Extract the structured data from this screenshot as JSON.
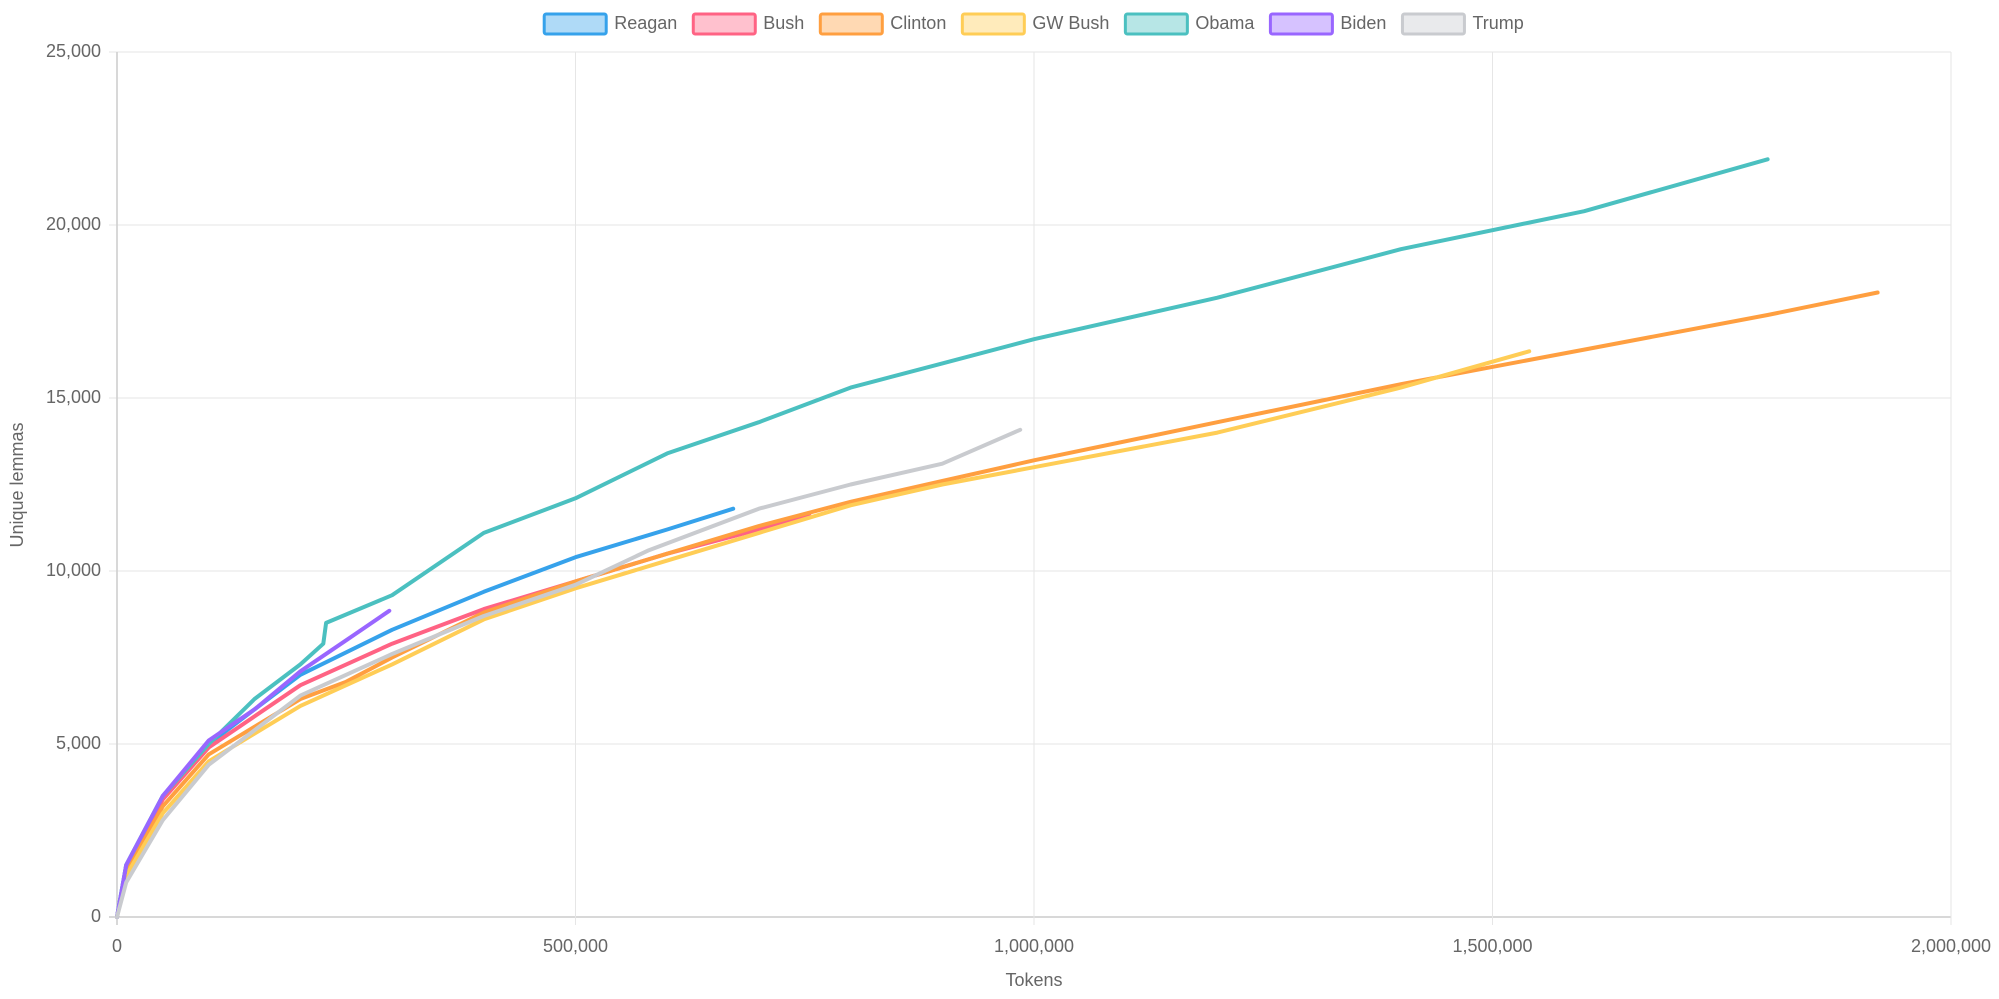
{
  "chart_data": {
    "type": "line",
    "x_label": "Tokens",
    "y_label": "Unique lemmas",
    "xlim": [
      0,
      2000000
    ],
    "xticks": [
      0,
      {
        "value": 500000,
        "label": "500,000"
      },
      {
        "value": 1000000,
        "label": "1,000,000"
      },
      {
        "value": 1500000,
        "label": "1,500,000"
      },
      {
        "value": 2000000,
        "label": "2,000,000"
      }
    ],
    "ylim": [
      0,
      25000
    ],
    "yticks": [
      0,
      {
        "value": 5000,
        "label": "5,000"
      },
      {
        "value": 10000,
        "label": "10,000"
      },
      {
        "value": 15000,
        "label": "15,000"
      },
      {
        "value": 20000,
        "label": "20,000"
      },
      {
        "value": 25000,
        "label": "25,000"
      }
    ],
    "grid": true,
    "legend": "top",
    "series": [
      {
        "name": "Reagan",
        "color": "#36a2eb",
        "x": [
          0,
          10000,
          50000,
          100000,
          150000,
          200000,
          300000,
          400000,
          500000,
          600000,
          672000
        ],
        "values": [
          0,
          1500,
          3500,
          5000,
          6000,
          7000,
          8300,
          9400,
          10400,
          11200,
          11800
        ]
      },
      {
        "name": "Bush",
        "color": "#ff6384",
        "x": [
          0,
          10000,
          50000,
          100000,
          200000,
          300000,
          400000,
          500000,
          600000,
          700000,
          755000
        ],
        "values": [
          0,
          1400,
          3400,
          4900,
          6700,
          7900,
          8900,
          9700,
          10500,
          11200,
          11650
        ]
      },
      {
        "name": "Clinton",
        "color": "#ff9f40",
        "x": [
          0,
          10000,
          50000,
          100000,
          200000,
          250000,
          300000,
          400000,
          500000,
          600000,
          700000,
          800000,
          900000,
          1000000,
          1200000,
          1400000,
          1600000,
          1800000,
          1920000
        ],
        "values": [
          0,
          1300,
          3200,
          4700,
          6300,
          6800,
          7500,
          8800,
          9700,
          10500,
          11300,
          12000,
          12600,
          13200,
          14300,
          15400,
          16400,
          17400,
          18050
        ]
      },
      {
        "name": "GW Bush",
        "color": "#ffcd56",
        "x": [
          0,
          10000,
          50000,
          100000,
          200000,
          300000,
          400000,
          500000,
          600000,
          700000,
          800000,
          900000,
          1000000,
          1200000,
          1400000,
          1540000
        ],
        "values": [
          0,
          1200,
          3000,
          4500,
          6100,
          7300,
          8600,
          9500,
          10300,
          11100,
          11900,
          12500,
          13000,
          14000,
          15300,
          16350
        ]
      },
      {
        "name": "Obama",
        "color": "#4bc0c0",
        "x": [
          0,
          10000,
          50000,
          100000,
          150000,
          200000,
          225000,
          228000,
          300000,
          400000,
          500000,
          600000,
          700000,
          800000,
          900000,
          1000000,
          1200000,
          1400000,
          1600000,
          1800000
        ],
        "values": [
          0,
          1500,
          3500,
          5000,
          6300,
          7300,
          7900,
          8500,
          9300,
          11100,
          12100,
          13400,
          14300,
          15300,
          16000,
          16700,
          17900,
          19300,
          20400,
          21900
        ]
      },
      {
        "name": "Biden",
        "color": "#9966ff",
        "x": [
          0,
          10000,
          50000,
          100000,
          150000,
          200000,
          250000,
          297000
        ],
        "values": [
          0,
          1500,
          3500,
          5100,
          6000,
          7100,
          8000,
          8850
        ]
      },
      {
        "name": "Trump",
        "color": "#c9cbcf",
        "x": [
          0,
          10000,
          50000,
          100000,
          200000,
          300000,
          400000,
          500000,
          580000,
          700000,
          800000,
          900000,
          985000
        ],
        "values": [
          0,
          1000,
          2800,
          4400,
          6400,
          7600,
          8700,
          9600,
          10600,
          11800,
          12500,
          13100,
          14080
        ]
      }
    ]
  }
}
